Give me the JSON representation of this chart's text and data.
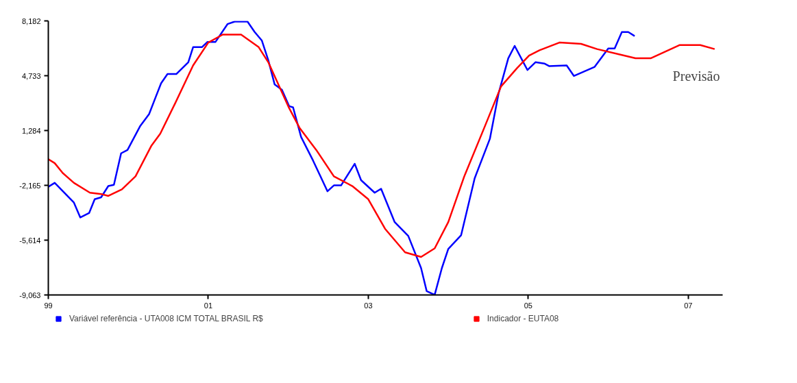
{
  "chart_data": {
    "type": "line",
    "xlim": [
      1999,
      2007.43
    ],
    "xticks": [
      {
        "value": 1999,
        "label": "99"
      },
      {
        "value": 2001,
        "label": "01"
      },
      {
        "value": 2003,
        "label": "03"
      },
      {
        "value": 2005,
        "label": "05"
      },
      {
        "value": 2007,
        "label": "07"
      }
    ],
    "ylim": [
      -9063,
      8182
    ],
    "yticks": [
      {
        "value": -9063,
        "label": "-9,063"
      },
      {
        "value": -5614,
        "label": "-5,614"
      },
      {
        "value": -2165,
        "label": "-2,165"
      },
      {
        "value": 1284,
        "label": "1,284"
      },
      {
        "value": 4733,
        "label": "4,733"
      },
      {
        "value": 8182,
        "label": "8,182"
      }
    ],
    "legend": "bottom",
    "marker": "none",
    "line_style": "solid",
    "annotations": [
      "Previsão"
    ],
    "series": [
      {
        "name": "Variável referência - UTA008 ICM TOTAL BRASIL R$",
        "color": "#0000ff",
        "x": [
          1999.0,
          1999.08,
          1999.32,
          1999.4,
          1999.51,
          1999.58,
          1999.66,
          1999.75,
          1999.82,
          1999.91,
          1999.99,
          2000.15,
          2000.26,
          2000.34,
          2000.41,
          2000.49,
          2000.6,
          2000.75,
          2000.81,
          2000.92,
          2000.99,
          2001.09,
          2001.24,
          2001.33,
          2001.49,
          2001.58,
          2001.67,
          2001.75,
          2001.83,
          2001.92,
          2002.01,
          2002.06,
          2002.16,
          2002.31,
          2002.49,
          2002.57,
          2002.66,
          2002.83,
          2002.91,
          2003.08,
          2003.16,
          2003.33,
          2003.5,
          2003.66,
          2003.73,
          2003.83,
          2003.92,
          2004.0,
          2004.16,
          2004.33,
          2004.52,
          2004.63,
          2004.75,
          2004.83,
          2004.99,
          2005.09,
          2005.2,
          2005.26,
          2005.48,
          2005.57,
          2005.83,
          2006.0,
          2006.08,
          2006.17,
          2006.25,
          2006.33
        ],
        "values": [
          -2260,
          -2010,
          -3250,
          -4190,
          -3910,
          -3040,
          -2920,
          -2210,
          -2130,
          -150,
          60,
          1580,
          2320,
          3360,
          4260,
          4840,
          4840,
          5580,
          6530,
          6530,
          6860,
          6860,
          7980,
          8140,
          8140,
          7480,
          6940,
          5710,
          4180,
          3850,
          2820,
          2740,
          880,
          -610,
          -2540,
          -2170,
          -2170,
          -810,
          -1840,
          -2630,
          -2380,
          -4480,
          -5350,
          -7370,
          -8820,
          -9060,
          -7370,
          -6170,
          -5310,
          -1720,
          760,
          3640,
          5830,
          6610,
          5090,
          5580,
          5500,
          5340,
          5380,
          4720,
          5290,
          6450,
          6450,
          7480,
          7480,
          7230
        ]
      },
      {
        "name": "Indicador - EUTA08",
        "color": "#ff0000",
        "x": [
          1999.0,
          1999.08,
          1999.18,
          1999.32,
          1999.52,
          1999.66,
          1999.75,
          1999.92,
          2000.09,
          2000.29,
          2000.4,
          2000.58,
          2000.81,
          2001.0,
          2001.18,
          2001.41,
          2001.63,
          2001.75,
          2002.01,
          2002.14,
          2002.35,
          2002.57,
          2002.8,
          2003.0,
          2003.21,
          2003.46,
          2003.66,
          2003.83,
          2004.0,
          2004.2,
          2004.46,
          2004.66,
          2004.86,
          2005.01,
          2005.14,
          2005.39,
          2005.66,
          2005.86,
          2006.17,
          2006.34,
          2006.53,
          2006.89,
          2007.15,
          2007.33
        ],
        "values": [
          -520,
          -770,
          -1390,
          -2010,
          -2630,
          -2710,
          -2830,
          -2420,
          -1600,
          340,
          1090,
          2940,
          5380,
          6820,
          7320,
          7320,
          6530,
          5580,
          2700,
          1460,
          60,
          -1600,
          -2210,
          -3040,
          -4900,
          -6380,
          -6670,
          -6130,
          -4480,
          -1600,
          1580,
          4060,
          5210,
          6000,
          6330,
          6820,
          6740,
          6410,
          6040,
          5830,
          5830,
          6660,
          6660,
          6410
        ]
      }
    ]
  }
}
